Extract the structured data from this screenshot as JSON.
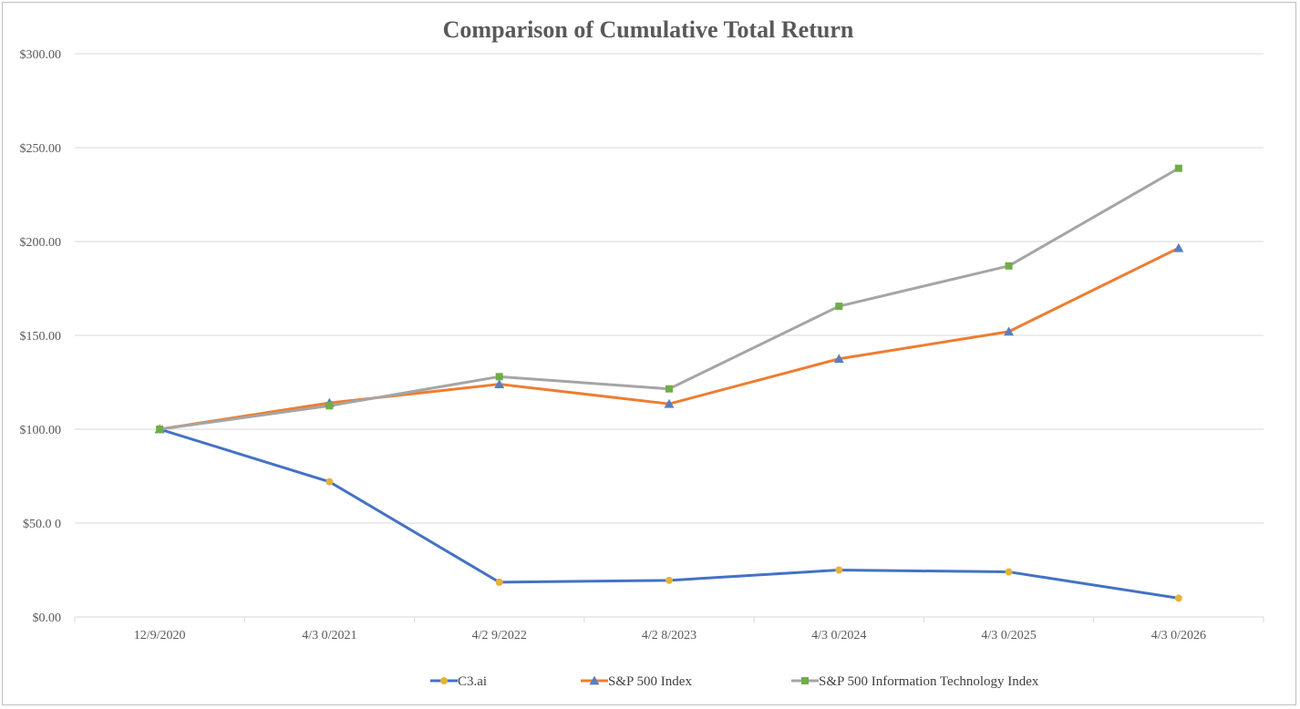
{
  "chart_data": {
    "type": "line",
    "title": "Comparison of Cumulative Total Return",
    "xlabel": "",
    "ylabel": "",
    "categories": [
      "12/9/2020",
      "4/3 0/2021",
      "4/2 9/2022",
      "4/2 8/2023",
      "4/3 0/2024",
      "4/3 0/2025",
      "4/3 0/2026"
    ],
    "y_ticks": [
      "$0.00",
      "$50.0 0",
      "$100.00",
      "$150.00",
      "$200.00",
      "$250.00",
      "$300.00"
    ],
    "ylim": [
      0,
      300
    ],
    "grid": true,
    "legend_position": "bottom",
    "series": [
      {
        "name": "C3.ai",
        "values": [
          100,
          72,
          18.5,
          19.5,
          25,
          24,
          10
        ],
        "line_color": "#4472c4",
        "marker": "circle",
        "marker_color": "#e6b23a"
      },
      {
        "name": "S&P 500 Index",
        "values": [
          100,
          114,
          124,
          113.5,
          137.5,
          152,
          196.5
        ],
        "line_color": "#ed7d31",
        "marker": "triangle",
        "marker_color": "#5b7fbd"
      },
      {
        "name": "S&P 500 Information Technology Index",
        "values": [
          100,
          112.5,
          128,
          121.5,
          165.5,
          187,
          239
        ],
        "line_color": "#a5a5a5",
        "marker": "square",
        "marker_color": "#70ad47"
      }
    ]
  }
}
